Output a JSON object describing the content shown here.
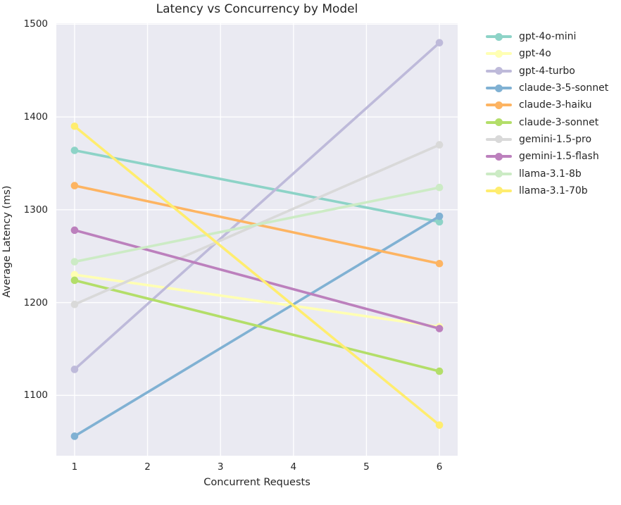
{
  "chart_data": {
    "type": "line",
    "title": "Latency vs Concurrency by Model",
    "xlabel": "Concurrent Requests",
    "ylabel": "Average Latency (ms)",
    "x": [
      1,
      6
    ],
    "xticks": [
      1,
      2,
      3,
      4,
      5,
      6
    ],
    "yticks": [
      1100,
      1200,
      1300,
      1400,
      1500
    ],
    "xlim": [
      0.75,
      6.25
    ],
    "ylim": [
      1035,
      1501
    ],
    "grid": true,
    "legend_position": "right-outside",
    "plot_background": "#eaeaf2",
    "grid_color": "#ffffff",
    "text_color": "#262626",
    "series": [
      {
        "name": "gpt-4o-mini",
        "color": "#8dd3c7",
        "values": [
          1364,
          1287
        ]
      },
      {
        "name": "gpt-4o",
        "color": "#ffffb3",
        "values": [
          1230,
          1174
        ]
      },
      {
        "name": "gpt-4-turbo",
        "color": "#bebada",
        "values": [
          1128,
          1480
        ]
      },
      {
        "name": "claude-3-5-sonnet",
        "color": "#80b1d3",
        "values": [
          1056,
          1293
        ]
      },
      {
        "name": "claude-3-haiku",
        "color": "#fdb462",
        "values": [
          1326,
          1242
        ]
      },
      {
        "name": "claude-3-sonnet",
        "color": "#b3de69",
        "values": [
          1224,
          1126
        ]
      },
      {
        "name": "gemini-1.5-pro",
        "color": "#d9d9d9",
        "values": [
          1198,
          1370
        ]
      },
      {
        "name": "gemini-1.5-flash",
        "color": "#bc80bd",
        "values": [
          1278,
          1172
        ]
      },
      {
        "name": "llama-3.1-8b",
        "color": "#ccebc5",
        "values": [
          1244,
          1324
        ]
      },
      {
        "name": "llama-3.1-70b",
        "color": "#ffed6f",
        "values": [
          1390,
          1068
        ]
      }
    ]
  }
}
